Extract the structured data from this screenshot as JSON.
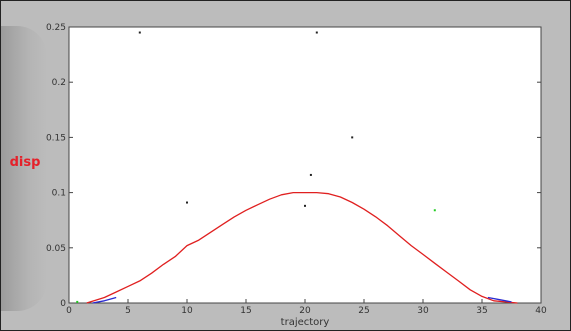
{
  "chart_data": {
    "type": "line",
    "xlabel": "trajectory",
    "ylabel": "disp",
    "xlim": [
      0,
      40
    ],
    "ylim": [
      0,
      0.25
    ],
    "xticks": [
      "0",
      "5",
      "10",
      "15",
      "20",
      "25",
      "30",
      "35",
      "40"
    ],
    "yticks": [
      "0",
      "0.05",
      "0.1",
      "0.15",
      "0.2",
      "0.25"
    ],
    "grid": false,
    "series": [
      {
        "color": "#e02020",
        "x": [
          1.5,
          3,
          4,
          5,
          6,
          7,
          8,
          9,
          10,
          11,
          12,
          13,
          14,
          15,
          16,
          17,
          18,
          19,
          20,
          21,
          22,
          23,
          24,
          25,
          26,
          27,
          28,
          29,
          30,
          31,
          32,
          33,
          34,
          35,
          36,
          37,
          38
        ],
        "values": [
          0,
          0.005,
          0.01,
          0.015,
          0.02,
          0.027,
          0.035,
          0.042,
          0.052,
          0.057,
          0.064,
          0.071,
          0.078,
          0.084,
          0.089,
          0.094,
          0.098,
          0.1,
          0.1,
          0.1,
          0.099,
          0.096,
          0.091,
          0.085,
          0.078,
          0.07,
          0.061,
          0.052,
          0.044,
          0.036,
          0.028,
          0.02,
          0.012,
          0.006,
          0.002,
          0.001,
          0
        ]
      },
      {
        "color": "#2a2ad0",
        "x": [
          2,
          3,
          4
        ],
        "values": [
          0,
          0.002,
          0.005
        ]
      },
      {
        "color": "#2a2ad0",
        "x": [
          35.5,
          36.5,
          37.5
        ],
        "values": [
          0.005,
          0.003,
          0.001
        ]
      }
    ],
    "markers": [
      {
        "x": 10,
        "y": 0.091,
        "color": "#222222"
      },
      {
        "x": 20,
        "y": 0.088,
        "color": "#222222"
      },
      {
        "x": 20.5,
        "y": 0.116,
        "color": "#222222"
      },
      {
        "x": 24,
        "y": 0.15,
        "color": "#222222"
      },
      {
        "x": 31,
        "y": 0.084,
        "color": "#22cc22"
      },
      {
        "x": 0.7,
        "y": 0.001,
        "color": "#22cc22"
      },
      {
        "x": 6,
        "y": 0.245,
        "color": "#222222"
      },
      {
        "x": 21,
        "y": 0.245,
        "color": "#222222"
      }
    ]
  }
}
